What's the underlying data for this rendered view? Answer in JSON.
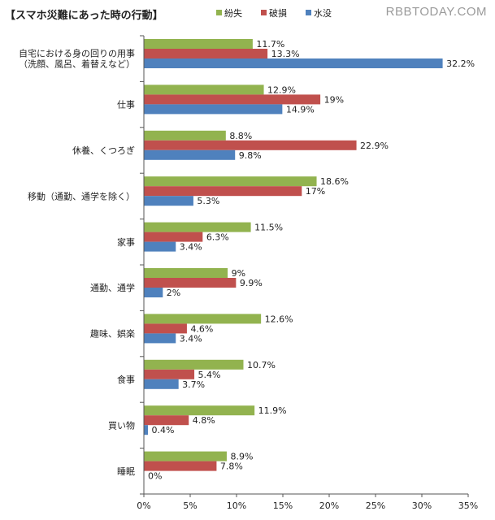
{
  "watermark": "RBBTODAY.COM",
  "chart_data": {
    "type": "bar",
    "orientation": "horizontal",
    "title": "【スマホ災難にあった時の行動】",
    "xlim": [
      0,
      35
    ],
    "xticks": [
      "0%",
      "5%",
      "10%",
      "15%",
      "20%",
      "25%",
      "30%",
      "35%"
    ],
    "categories": [
      "自宅における身の回りの用事\n（洗顔、風呂、着替えなど）",
      "仕事",
      "休養、くつろぎ",
      "移動（通勤、通学を除く）",
      "家事",
      "通勤、通学",
      "趣味、娯楽",
      "食事",
      "買い物",
      "睡眠"
    ],
    "series": [
      {
        "name": "紛失",
        "color": "#92b34f",
        "values": [
          11.7,
          12.9,
          8.8,
          18.6,
          11.5,
          9,
          12.6,
          10.7,
          11.9,
          8.9
        ],
        "labels": [
          "11.7%",
          "12.9%",
          "8.8%",
          "18.6%",
          "11.5%",
          "9%",
          "12.6%",
          "10.7%",
          "11.9%",
          "8.9%"
        ]
      },
      {
        "name": "破損",
        "color": "#c0504d",
        "values": [
          13.3,
          19,
          22.9,
          17,
          6.3,
          9.9,
          4.6,
          5.4,
          4.8,
          7.8
        ],
        "labels": [
          "13.3%",
          "19%",
          "22.9%",
          "17%",
          "6.3%",
          "9.9%",
          "4.6%",
          "5.4%",
          "4.8%",
          "7.8%"
        ]
      },
      {
        "name": "水没",
        "color": "#4f81bd",
        "values": [
          32.2,
          14.9,
          9.8,
          5.3,
          3.4,
          2,
          3.4,
          3.7,
          0.4,
          0
        ],
        "labels": [
          "32.2%",
          "14.9%",
          "9.8%",
          "5.3%",
          "3.4%",
          "2%",
          "3.4%",
          "3.7%",
          "0.4%",
          "0%"
        ]
      }
    ],
    "legend_position": "top",
    "grid": true
  }
}
